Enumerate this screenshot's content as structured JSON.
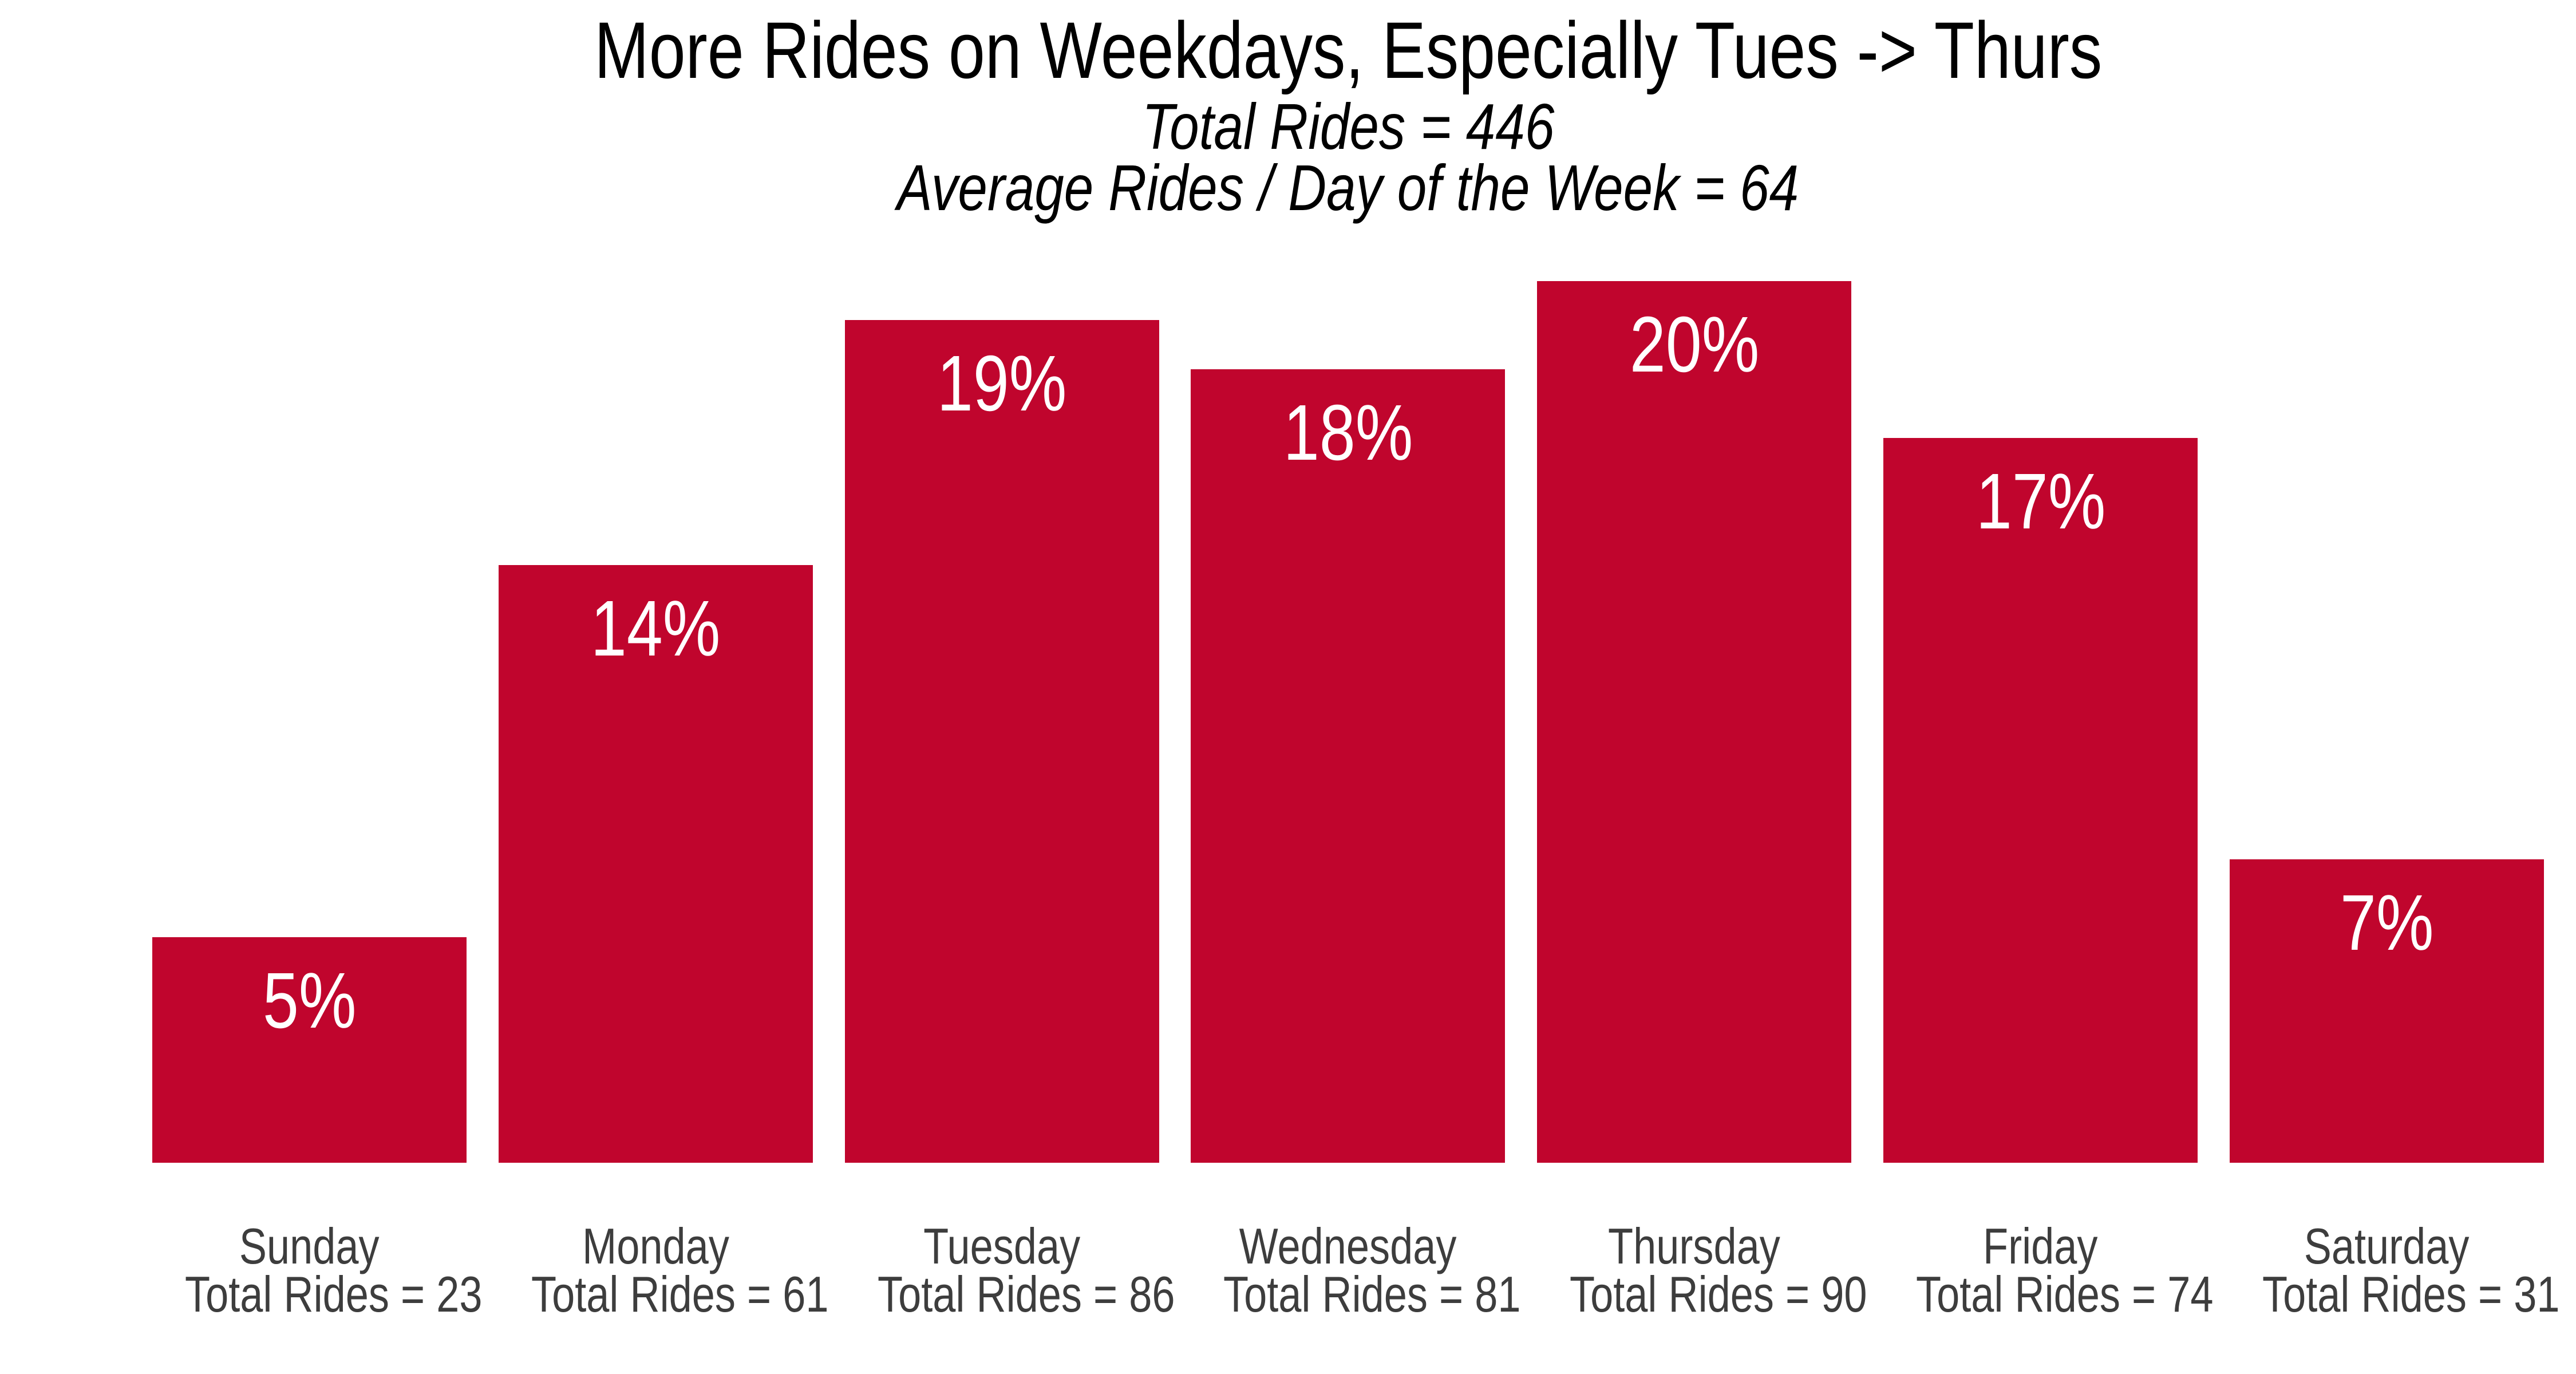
{
  "chart_data": {
    "type": "bar",
    "title": "More Rides on Weekdays, Especially Tues -> Thurs",
    "subtitle_lines": [
      "Total Rides = 446",
      "Average Rides / Day of the Week = 64"
    ],
    "total_rides": 446,
    "average_rides_per_day_of_week": 64,
    "categories": [
      "Sunday",
      "Monday",
      "Tuesday",
      "Wednesday",
      "Thursday",
      "Friday",
      "Saturday"
    ],
    "series": [
      {
        "name": "Total Rides",
        "values": [
          23,
          61,
          86,
          81,
          90,
          74,
          31
        ]
      }
    ],
    "bar_percent_labels": [
      "5%",
      "14%",
      "19%",
      "18%",
      "20%",
      "17%",
      "7%"
    ],
    "x_tick_lines": [
      [
        "Sunday",
        "Total Rides = 23"
      ],
      [
        "Monday",
        "Total Rides = 61"
      ],
      [
        "Tuesday",
        "Total Rides = 86"
      ],
      [
        "Wednesday",
        "Total Rides = 81"
      ],
      [
        "Thursday",
        "Total Rides = 90"
      ],
      [
        "Friday",
        "Total Rides = 74"
      ],
      [
        "Saturday",
        "Total Rides = 31"
      ]
    ],
    "ylim": [
      0,
      90
    ],
    "grid": false,
    "axes_visible": false,
    "legend_position": "none",
    "colors": {
      "bar": "#C0052D",
      "percent_label": "#FFFFFF",
      "tick_label": "#3D3D3D",
      "title": "#000000"
    }
  }
}
